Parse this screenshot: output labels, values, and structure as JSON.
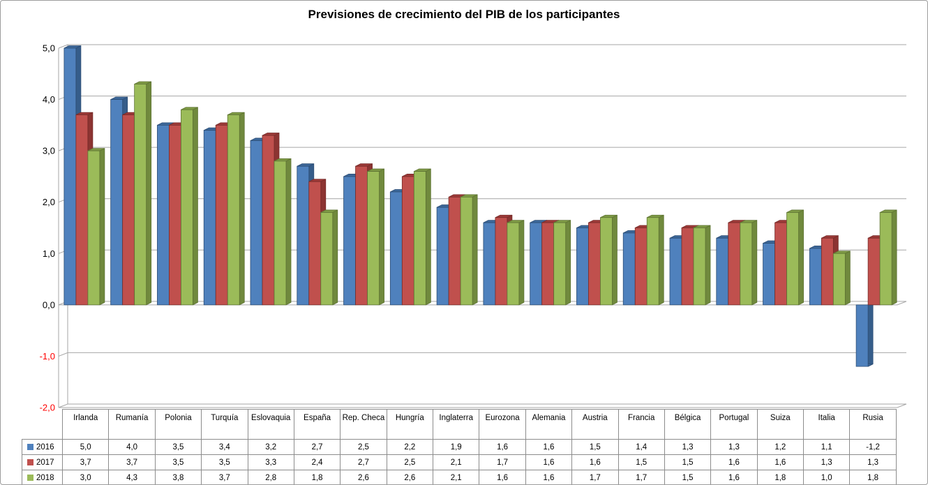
{
  "title": "Previsiones de crecimiento del PIB de los participantes",
  "colors": {
    "grid": "#a6a6a6",
    "axis_frame": "#a6a6a6",
    "outer_border": "#9c9c9c",
    "table_border": "#8c8c8c",
    "tick_label": "#000000",
    "negative_tick_label": "#ff0000",
    "background": "#ffffff"
  },
  "y_axis": {
    "tick_labels": [
      "5,0",
      "4,0",
      "3,0",
      "2,0",
      "1,0",
      "0,0",
      "-1,0",
      "-2,0"
    ],
    "tick_values": [
      5,
      4,
      3,
      2,
      1,
      0,
      -1,
      -2
    ]
  },
  "chart_data": {
    "type": "bar",
    "style": "3d-clustered-column",
    "title": "Previsiones de crecimiento del PIB de los participantes",
    "xlabel": "",
    "ylabel": "",
    "ylim": [
      -2,
      5
    ],
    "ytick_step": 1,
    "grid": true,
    "legend_position": "table-left",
    "decimal_separator": ",",
    "categories": [
      "Irlanda",
      "Rumanía",
      "Polonia",
      "Turquía",
      "Eslovaquia",
      "España",
      "Rep. Checa",
      "Hungría",
      "Inglaterra",
      "Eurozona",
      "Alemania",
      "Austria",
      "Francia",
      "Bélgica",
      "Portugal",
      "Suiza",
      "Italia",
      "Rusia"
    ],
    "series": [
      {
        "name": "2016",
        "color": "#4f81bd",
        "color_top": "#3d689a",
        "color_side": "#365d8a",
        "color_edge": "#2c4d74",
        "values": [
          5.0,
          4.0,
          3.5,
          3.4,
          3.2,
          2.7,
          2.5,
          2.2,
          1.9,
          1.6,
          1.6,
          1.5,
          1.4,
          1.3,
          1.3,
          1.2,
          1.1,
          -1.2
        ]
      },
      {
        "name": "2017",
        "color": "#c0504d",
        "color_top": "#9c3a38",
        "color_side": "#8c3432",
        "color_edge": "#772b29",
        "values": [
          3.7,
          3.7,
          3.5,
          3.5,
          3.3,
          2.4,
          2.7,
          2.5,
          2.1,
          1.7,
          1.6,
          1.6,
          1.5,
          1.5,
          1.6,
          1.6,
          1.3,
          1.3
        ]
      },
      {
        "name": "2018",
        "color": "#9bbb59",
        "color_top": "#7e9a45",
        "color_side": "#70893d",
        "color_edge": "#5e7333",
        "values": [
          3.0,
          4.3,
          3.8,
          3.7,
          2.8,
          1.8,
          2.6,
          2.6,
          2.1,
          1.6,
          1.6,
          1.7,
          1.7,
          1.5,
          1.6,
          1.8,
          1.0,
          1.8
        ]
      }
    ]
  }
}
